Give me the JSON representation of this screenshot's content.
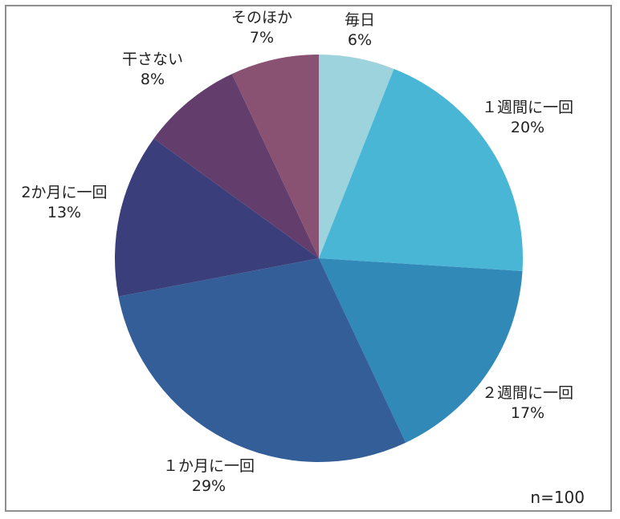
{
  "chart_data": {
    "type": "pie",
    "categories": [
      "毎日",
      "１週間に一回",
      "２週間に一回",
      "１か月に一回",
      "2か月に一回",
      "干さない",
      "そのほか"
    ],
    "values": [
      6,
      20,
      17,
      29,
      13,
      8,
      7
    ],
    "value_labels": [
      "6%",
      "20%",
      "17%",
      "29%",
      "13%",
      "8%",
      "7%"
    ],
    "colors": [
      "#9dd3dc",
      "#4ab6d6",
      "#3189b8",
      "#335e98",
      "#3a3f7c",
      "#633d6c",
      "#8a5272"
    ],
    "start": "top",
    "direction": "clockwise",
    "legend": "none",
    "note": "n=100"
  }
}
